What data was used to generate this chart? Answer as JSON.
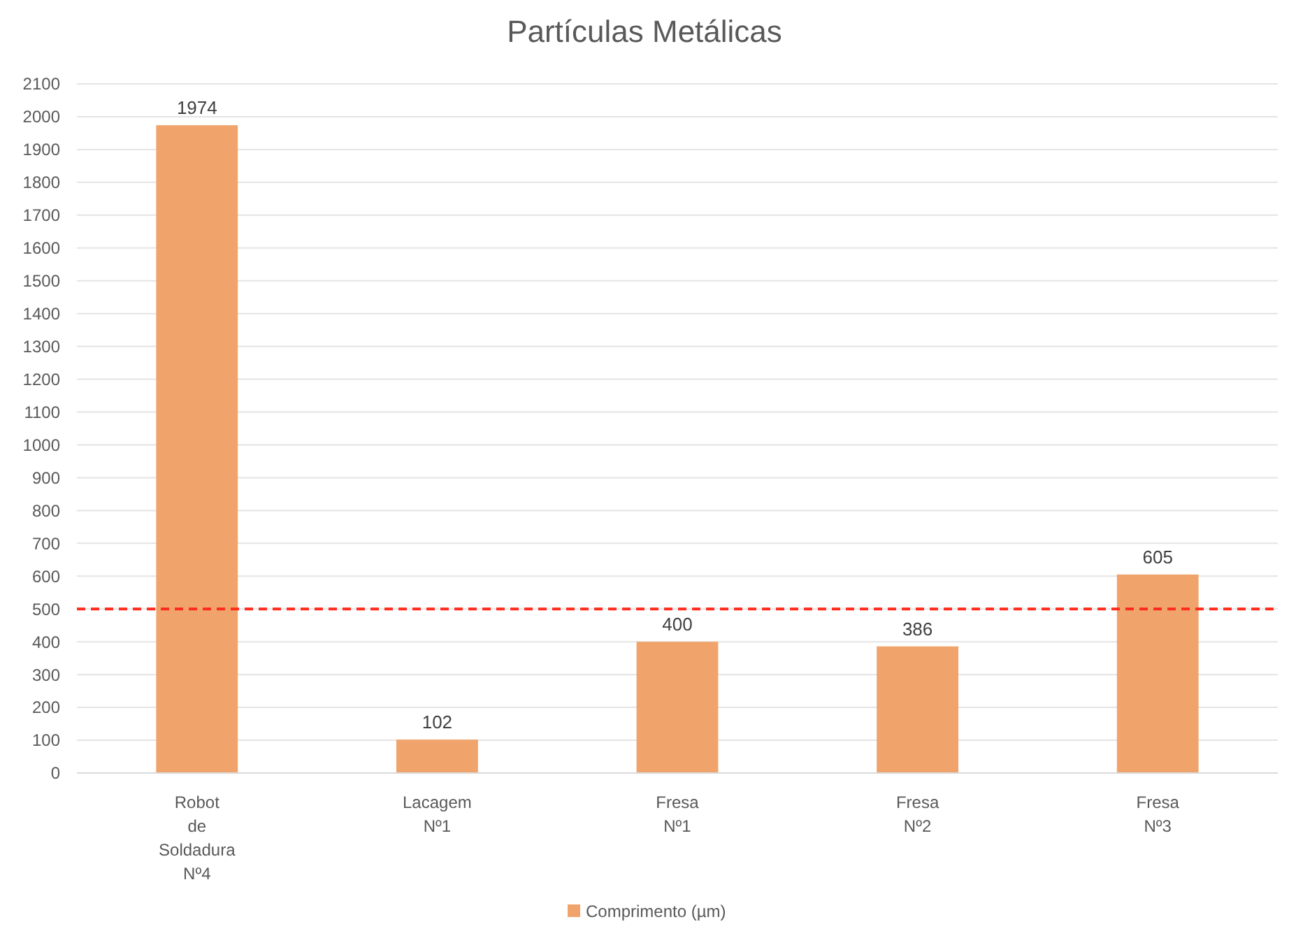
{
  "chart_data": {
    "type": "bar",
    "title": "Partículas Metálicas",
    "categories": [
      "Robot de Soldadura Nº4",
      "Lacagem Nº1",
      "Fresa Nº1",
      "Fresa Nº2",
      "Fresa Nº3"
    ],
    "series": [
      {
        "name": "Comprimento (µm)",
        "color": "#f0a46c",
        "values": [
          1974,
          102,
          400,
          386,
          605
        ]
      }
    ],
    "ylim": [
      0,
      2100
    ],
    "yticks": [
      0,
      100,
      200,
      300,
      400,
      500,
      600,
      700,
      800,
      900,
      1000,
      1100,
      1200,
      1300,
      1400,
      1500,
      1600,
      1700,
      1800,
      1900,
      2000,
      2100
    ],
    "grid": "y",
    "data_labels": true,
    "legend": "bottom",
    "ref_lines": [
      {
        "axis": "y",
        "value": 500,
        "color": "#ff2a1a",
        "line_style": "dashed"
      }
    ]
  }
}
